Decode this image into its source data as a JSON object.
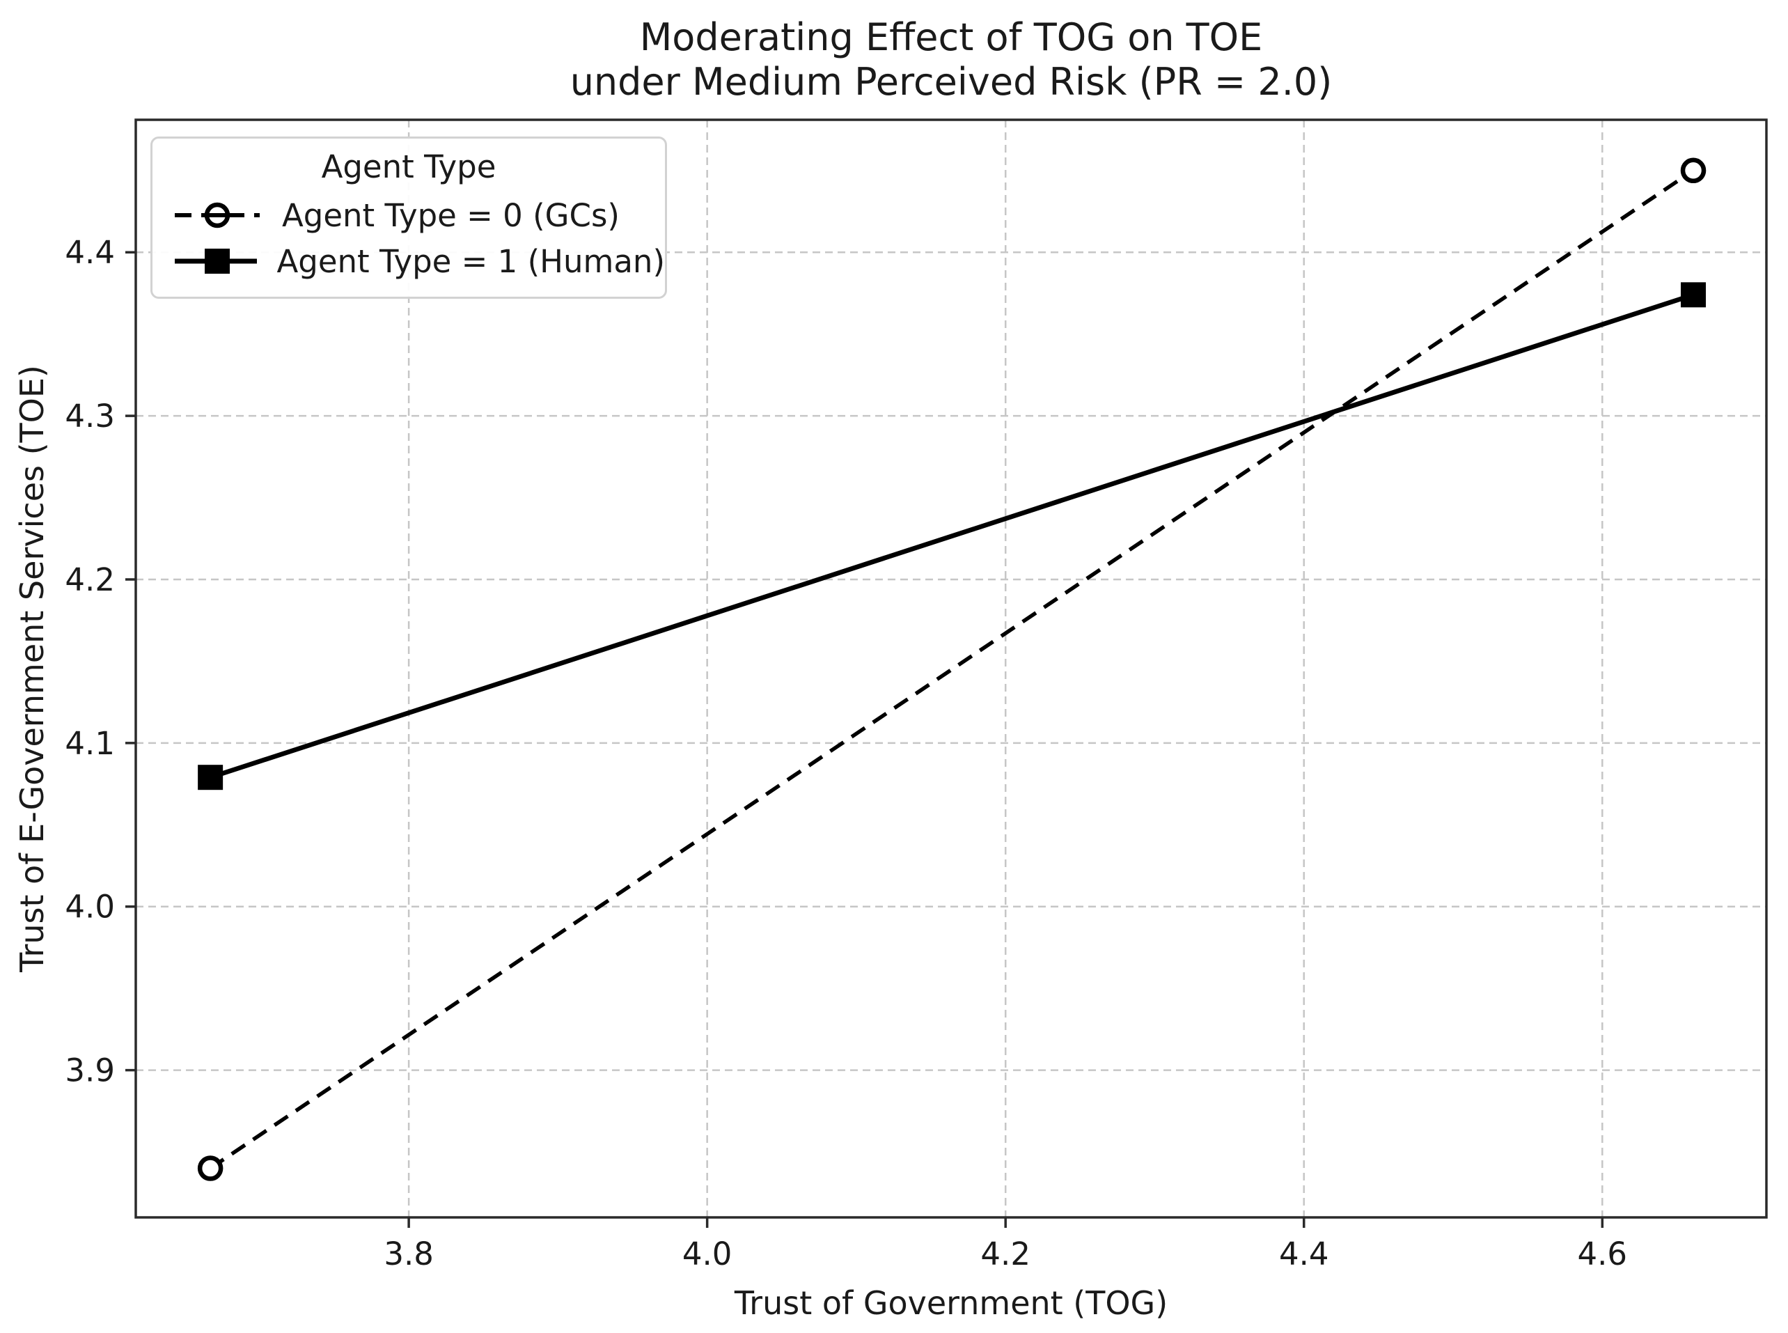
{
  "chart_data": {
    "type": "line",
    "title": "Moderating Effect of TOG on TOE\nunder Medium Perceived Risk (PR = 2.0)",
    "title_line1": "Moderating Effect of TOG on TOE",
    "title_line2": "under Medium Perceived Risk (PR = 2.0)",
    "xlabel": "Trust of Government (TOG)",
    "ylabel": "Trust of E-Government Services (TOE)",
    "xlim": [
      3.617,
      4.71
    ],
    "ylim": [
      3.81,
      4.481
    ],
    "xticks": [
      3.8,
      4.0,
      4.2,
      4.4,
      4.6
    ],
    "yticks": [
      3.9,
      4.0,
      4.1,
      4.2,
      4.3,
      4.4
    ],
    "grid": true,
    "grid_style": "dashed",
    "legend": {
      "title": "Agent Type",
      "position": "upper left"
    },
    "series": [
      {
        "name": "Agent Type = 0 (GCs)",
        "x": [
          3.667,
          4.661
        ],
        "y": [
          3.84,
          4.45
        ],
        "line_style": "dashed",
        "marker": "circle-open",
        "color": "#000000"
      },
      {
        "name": "Agent Type = 1 (Human)",
        "x": [
          3.667,
          4.661
        ],
        "y": [
          4.079,
          4.374
        ],
        "line_style": "solid",
        "marker": "square-filled",
        "color": "#000000"
      }
    ]
  },
  "colors": {
    "background": "#ffffff",
    "grid": "#c6c6c6",
    "spine": "#2a2a2a",
    "text": "#1a1a1a",
    "legend_border": "#d2d2d2",
    "series": "#000000"
  }
}
